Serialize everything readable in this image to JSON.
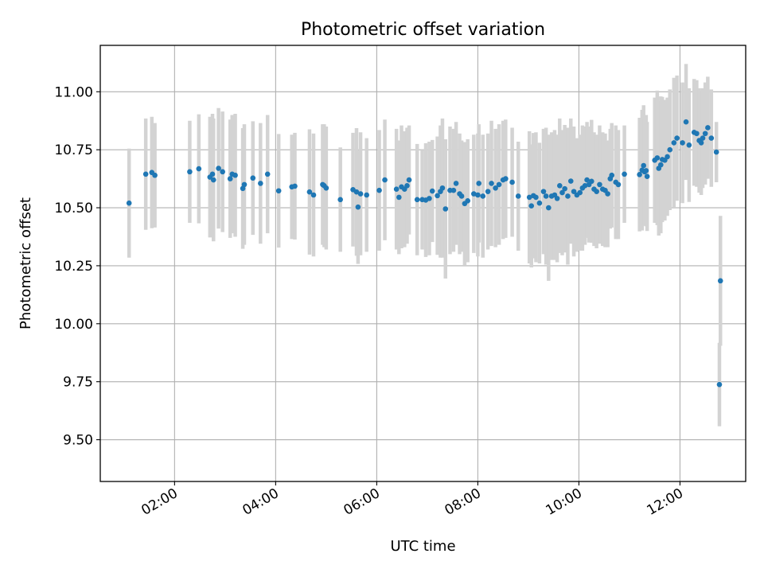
{
  "chart_data": {
    "type": "scatter",
    "title": "Photometric offset variation",
    "xlabel": "UTC time",
    "ylabel": "Photometric offset",
    "x_unit": "hours UTC",
    "xlim": [
      0.53,
      13.3
    ],
    "ylim": [
      9.32,
      11.2
    ],
    "x_ticks": [
      {
        "value": 2,
        "label": "02:00"
      },
      {
        "value": 4,
        "label": "04:00"
      },
      {
        "value": 6,
        "label": "06:00"
      },
      {
        "value": 8,
        "label": "08:00"
      },
      {
        "value": 10,
        "label": "10:00"
      },
      {
        "value": 12,
        "label": "12:00"
      }
    ],
    "y_ticks": [
      {
        "value": 9.5,
        "label": "9.50"
      },
      {
        "value": 9.75,
        "label": "9.75"
      },
      {
        "value": 10.0,
        "label": "10.00"
      },
      {
        "value": 10.25,
        "label": "10.25"
      },
      {
        "value": 10.5,
        "label": "10.50"
      },
      {
        "value": 10.75,
        "label": "10.75"
      },
      {
        "value": 11.0,
        "label": "11.00"
      }
    ],
    "grid": true,
    "point_color": "#1f77b4",
    "errorbar_color": "#d3d3d3",
    "series": [
      {
        "x": [
          1.1,
          1.43,
          1.55,
          1.61,
          2.3,
          2.48,
          2.7,
          2.75,
          2.77,
          2.87,
          2.95,
          3.1,
          3.14,
          3.2,
          3.35,
          3.38,
          3.55,
          3.7,
          3.84,
          4.06,
          4.32,
          4.38,
          4.67,
          4.75,
          4.93,
          4.96,
          5.0,
          5.28,
          5.53,
          5.6,
          5.63,
          5.68,
          5.8,
          6.05,
          6.16,
          6.39,
          6.44,
          6.49,
          6.55,
          6.6,
          6.64,
          6.8,
          6.9,
          6.97,
          7.04,
          7.1,
          7.2,
          7.26,
          7.3,
          7.36,
          7.45,
          7.52,
          7.57,
          7.64,
          7.68,
          7.74,
          7.8,
          7.92,
          8.0,
          8.02,
          8.1,
          8.2,
          8.27,
          8.35,
          8.42,
          8.5,
          8.55,
          8.68,
          8.8,
          9.02,
          9.06,
          9.1,
          9.15,
          9.22,
          9.3,
          9.35,
          9.4,
          9.46,
          9.52,
          9.57,
          9.62,
          9.67,
          9.72,
          9.78,
          9.84,
          9.9,
          9.96,
          10.02,
          10.07,
          10.12,
          10.16,
          10.2,
          10.25,
          10.3,
          10.35,
          10.41,
          10.47,
          10.52,
          10.57,
          10.62,
          10.65,
          10.73,
          10.78,
          10.9,
          11.2,
          11.25,
          11.28,
          11.3,
          11.33,
          11.35,
          11.5,
          11.55,
          11.58,
          11.62,
          11.65,
          11.7,
          11.75,
          11.8,
          11.88,
          11.94,
          12.05,
          12.12,
          12.18,
          12.28,
          12.33,
          12.38,
          12.42,
          12.45,
          12.5,
          12.55,
          12.62,
          12.72,
          12.8
        ],
        "y": [
          10.52,
          10.645,
          10.652,
          10.64,
          10.655,
          10.668,
          10.632,
          10.645,
          10.62,
          10.67,
          10.655,
          10.625,
          10.645,
          10.64,
          10.583,
          10.6,
          10.628,
          10.605,
          10.645,
          10.573,
          10.59,
          10.593,
          10.568,
          10.555,
          10.6,
          10.595,
          10.585,
          10.535,
          10.578,
          10.568,
          10.503,
          10.56,
          10.555,
          10.575,
          10.62,
          10.58,
          10.545,
          10.59,
          10.58,
          10.595,
          10.62,
          10.535,
          10.535,
          10.533,
          10.54,
          10.572,
          10.552,
          10.57,
          10.585,
          10.495,
          10.575,
          10.575,
          10.605,
          10.56,
          10.55,
          10.518,
          10.53,
          10.56,
          10.555,
          10.605,
          10.55,
          10.57,
          10.605,
          10.585,
          10.6,
          10.62,
          10.625,
          10.61,
          10.55,
          10.545,
          10.508,
          10.552,
          10.545,
          10.52,
          10.57,
          10.55,
          10.5,
          10.55,
          10.555,
          10.54,
          10.595,
          10.565,
          10.582,
          10.55,
          10.615,
          10.57,
          10.555,
          10.565,
          10.585,
          10.595,
          10.62,
          10.6,
          10.614,
          10.58,
          10.57,
          10.6,
          10.58,
          10.575,
          10.56,
          10.625,
          10.64,
          10.61,
          10.6,
          10.645,
          10.643,
          10.662,
          10.682,
          10.655,
          10.66,
          10.635,
          10.705,
          10.715,
          10.67,
          10.685,
          10.708,
          10.705,
          10.72,
          10.75,
          10.78,
          10.8,
          10.78,
          10.87,
          10.77,
          10.825,
          10.82,
          10.79,
          10.78,
          10.8,
          10.82,
          10.845,
          10.8,
          10.74,
          10.185
        ],
        "err": [
          0.235,
          0.24,
          0.24,
          0.225,
          0.22,
          0.235,
          0.26,
          0.26,
          0.265,
          0.26,
          0.26,
          0.255,
          0.255,
          0.265,
          0.26,
          0.26,
          0.245,
          0.26,
          0.255,
          0.245,
          0.225,
          0.23,
          0.27,
          0.265,
          0.26,
          0.265,
          0.265,
          0.225,
          0.245,
          0.275,
          0.245,
          0.265,
          0.245,
          0.26,
          0.26,
          0.26,
          0.245,
          0.265,
          0.25,
          0.25,
          0.235,
          0.24,
          0.215,
          0.245,
          0.245,
          0.22,
          0.255,
          0.285,
          0.3,
          0.3,
          0.275,
          0.265,
          0.265,
          0.26,
          0.24,
          0.265,
          0.265,
          0.255,
          0.265,
          0.255,
          0.265,
          0.25,
          0.27,
          0.255,
          0.26,
          0.255,
          0.255,
          0.235,
          0.235,
          0.285,
          0.265,
          0.27,
          0.28,
          0.26,
          0.27,
          0.295,
          0.315,
          0.275,
          0.28,
          0.275,
          0.29,
          0.27,
          0.275,
          0.295,
          0.27,
          0.28,
          0.245,
          0.25,
          0.27,
          0.255,
          0.25,
          0.25,
          0.265,
          0.245,
          0.245,
          0.255,
          0.245,
          0.245,
          0.23,
          0.215,
          0.225,
          0.245,
          0.235,
          0.21,
          0.245,
          0.26,
          0.26,
          0.23,
          0.24,
          0.235,
          0.27,
          0.29,
          0.29,
          0.295,
          0.27,
          0.26,
          0.255,
          0.26,
          0.28,
          0.27,
          0.26,
          0.25,
          0.245,
          0.23,
          0.23,
          0.225,
          0.225,
          0.215,
          0.22,
          0.22,
          0.21,
          0.13,
          0.28
        ]
      },
      {
        "x": [
          12.78
        ],
        "y": [
          9.738
        ],
        "err": [
          0.18
        ]
      }
    ]
  }
}
